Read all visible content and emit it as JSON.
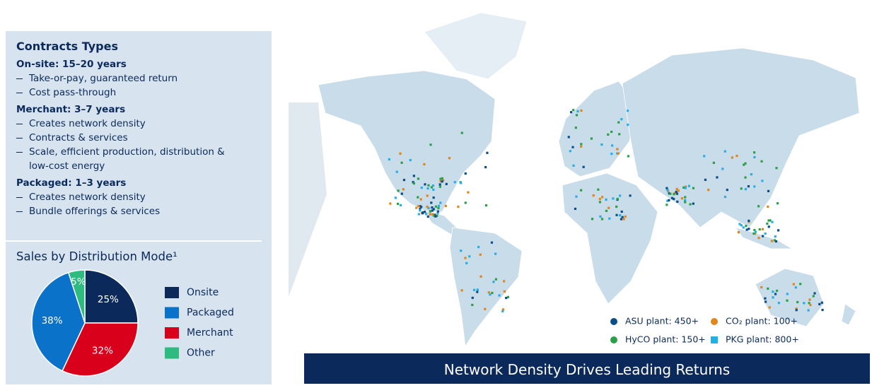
{
  "contracts": {
    "title": "Contracts Types",
    "groups": [
      {
        "heading": "On-site: 15–20 years",
        "items": [
          "Take-or-pay, guaranteed return",
          "Cost pass-through"
        ]
      },
      {
        "heading": "Merchant: 3–7 years",
        "items": [
          "Creates network density",
          "Contracts & services",
          "Scale, efficient production, distribution & low-cost energy"
        ]
      },
      {
        "heading": "Packaged: 1–3 years",
        "items": [
          "Creates network density",
          "Bundle offerings & services"
        ]
      }
    ]
  },
  "sales": {
    "type": "pie",
    "title": "Sales by Distribution Mode¹",
    "categories": [
      "Onsite",
      "Merchant",
      "Packaged",
      "Other"
    ],
    "values": [
      25,
      32,
      38,
      5
    ],
    "value_labels": [
      "25%",
      "32%",
      "38%",
      "5%"
    ],
    "colors": [
      "#0b2a5b",
      "#d9001b",
      "#0a72c9",
      "#2dbb7f"
    ]
  },
  "map": {
    "legend": [
      {
        "label": "ASU plant: 450+",
        "color": "#0b4f8a"
      },
      {
        "label": "CO₂ plant: 100+",
        "color": "#e0861a"
      },
      {
        "label": "HyCO plant: 150+",
        "color": "#2aa146"
      },
      {
        "label": "PKG plant: 800+",
        "color": "#25aee8"
      }
    ],
    "banner": "Network Density Drives Leading Returns"
  }
}
